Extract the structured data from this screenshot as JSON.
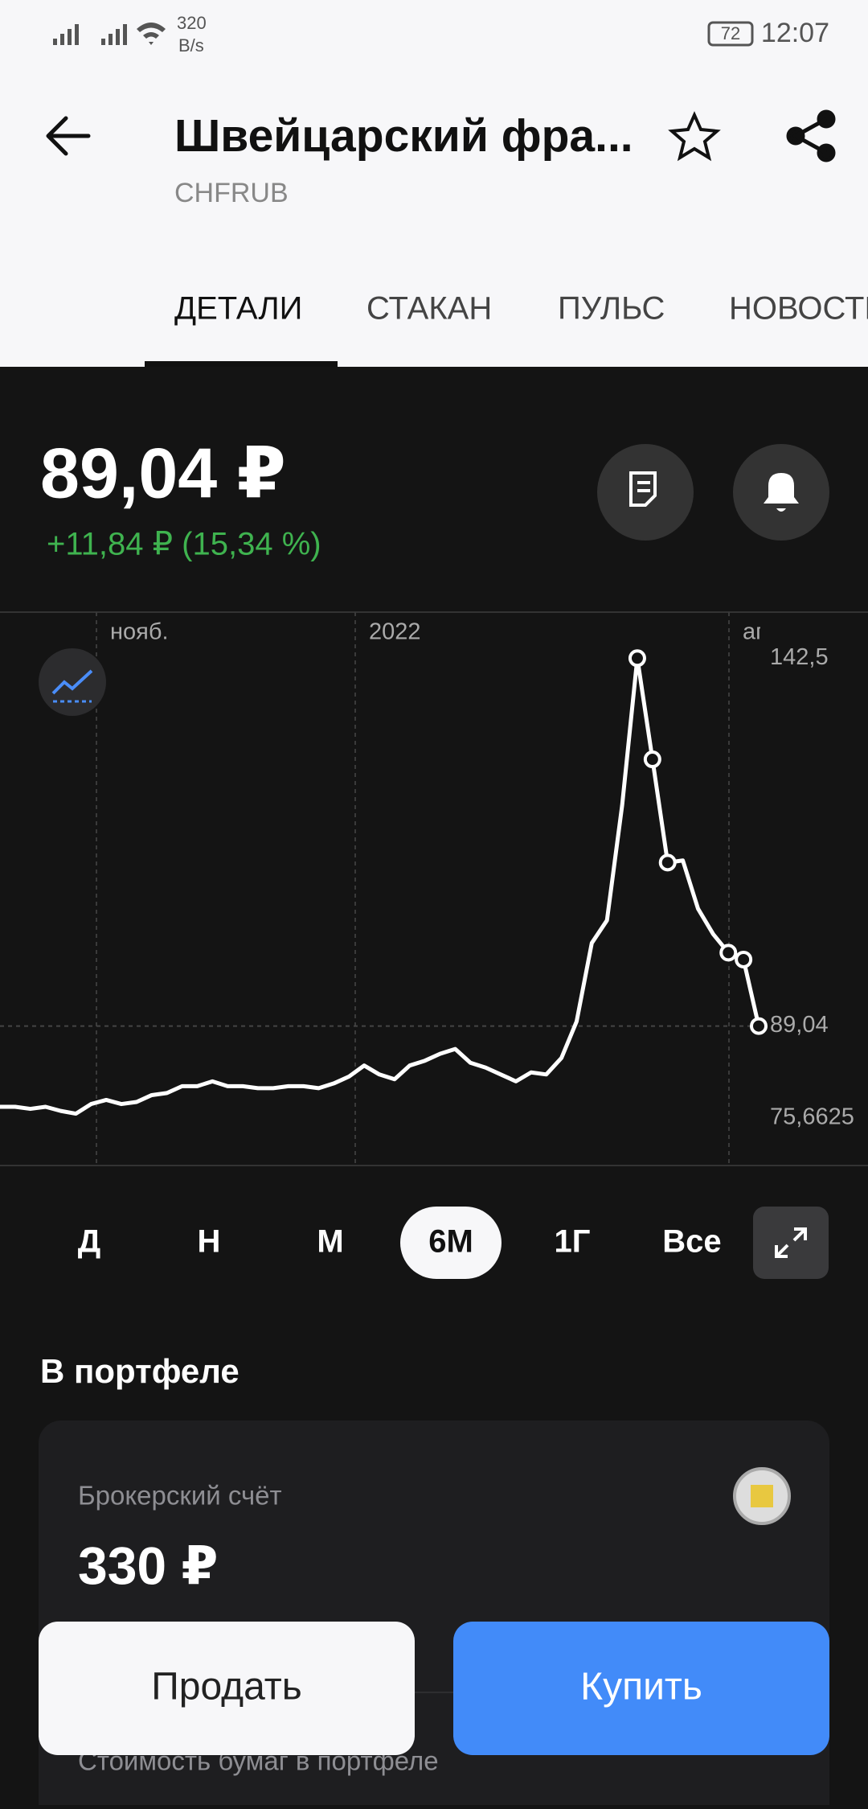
{
  "status": {
    "speed": "320",
    "speed_unit": "B/s",
    "battery": "72",
    "time": "12:07"
  },
  "header": {
    "title": "Швейцарский фра...",
    "ticker": "CHFRUB"
  },
  "tabs": [
    "ДЕТАЛИ",
    "СТАКАН",
    "ПУЛЬС",
    "НОВОСТИ"
  ],
  "price": {
    "value": "89,04 ₽",
    "change": "+11,84 ₽ (15,34 %)"
  },
  "chart_data": {
    "type": "line",
    "period_labels": [
      "нояб.",
      "2022",
      "апр."
    ],
    "ylim": [
      69,
      149.2
    ],
    "yticks": [
      {
        "value": 142.5,
        "label": "142,5"
      },
      {
        "value": 89.04,
        "label": "89,04"
      },
      {
        "value": 75.6625,
        "label": "75,6625"
      }
    ],
    "series": [
      {
        "color": "#ffffff",
        "values": [
          77.3,
          77.3,
          77.0,
          77.3,
          76.7,
          76.3,
          77.7,
          78.3,
          77.7,
          78.0,
          79.0,
          79.3,
          80.3,
          80.3,
          81.0,
          80.3,
          80.3,
          80.0,
          80.0,
          80.3,
          80.3,
          80.0,
          80.7,
          81.7,
          83.3,
          82.0,
          81.3,
          83.3,
          84.0,
          85.0,
          85.7,
          83.7,
          83.0,
          82.0,
          81.0,
          82.3,
          82.0,
          84.4,
          89.7,
          101.1,
          104.4,
          121.1,
          142.5,
          127.8,
          112.8,
          113.1,
          106.1,
          102.4,
          99.7,
          98.7,
          89.04
        ]
      }
    ]
  },
  "periods": {
    "items": [
      "Д",
      "Н",
      "М",
      "6М",
      "1Г",
      "Все"
    ],
    "selected": 3
  },
  "portfolio": {
    "title": "В портфеле",
    "account": "Брокерский счёт",
    "amount": "330 ₽",
    "note": "Стоимость бумаг в портфеле"
  },
  "actions": {
    "sell": "Продать",
    "buy": "Купить"
  }
}
